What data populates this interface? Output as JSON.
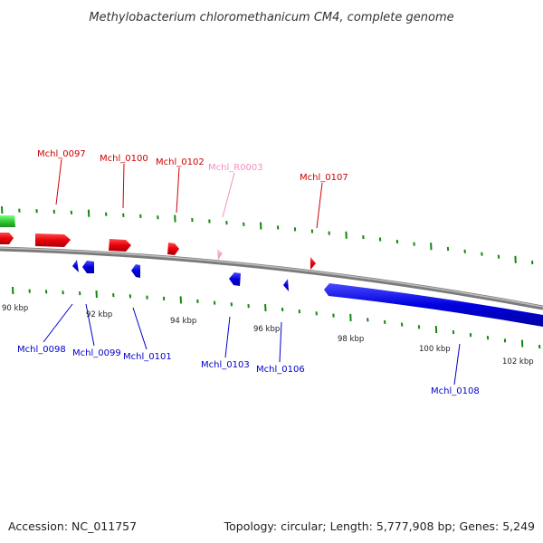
{
  "title": "Methylobacterium chloromethanicum CM4, complete genome",
  "footer": {
    "accession": "Accession: NC_011757",
    "summary": "Topology: circular; Length: 5,777,908 bp; Genes: 5,249"
  },
  "colors": {
    "forward_gene": "#e8000b",
    "reverse_gene": "#0000e0",
    "rna_gene": "#f0a0c8",
    "other_feature": "#33cc33",
    "backbone": "#8a8a8a",
    "ticks": "#118811"
  },
  "scale_labels": [
    "90 kbp",
    "92 kbp",
    "94 kbp",
    "96 kbp",
    "98 kbp",
    "100 kbp",
    "102 kbp"
  ],
  "genes_top": [
    {
      "id": "Mchl_0097",
      "color": "#cc0000"
    },
    {
      "id": "Mchl_0100",
      "color": "#cc0000"
    },
    {
      "id": "Mchl_0102",
      "color": "#cc0000"
    },
    {
      "id": "Mchl_R0003",
      "color": "#f090c0"
    },
    {
      "id": "Mchl_0107",
      "color": "#cc0000"
    }
  ],
  "genes_bottom": [
    {
      "id": "Mchl_0098",
      "color": "#0000cc"
    },
    {
      "id": "Mchl_0099",
      "color": "#0000cc"
    },
    {
      "id": "Mchl_0101",
      "color": "#0000cc"
    },
    {
      "id": "Mchl_0103",
      "color": "#0000cc"
    },
    {
      "id": "Mchl_0106",
      "color": "#0000cc"
    },
    {
      "id": "Mchl_0108",
      "color": "#0000cc"
    }
  ]
}
